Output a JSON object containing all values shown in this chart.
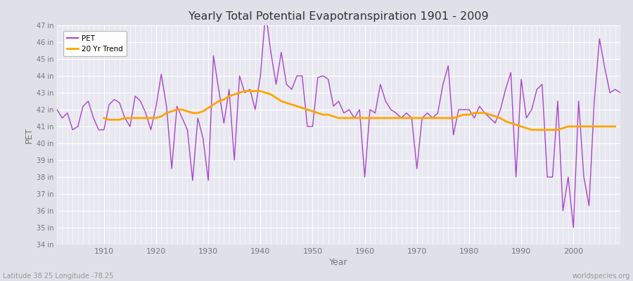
{
  "title": "Yearly Total Potential Evapotranspiration 1901 - 2009",
  "ylabel": "PET",
  "xlabel": "Year",
  "footnote_left": "Latitude 38.25 Longitude -78.25",
  "footnote_right": "worldspecies.org",
  "pet_color": "#AA44CC",
  "trend_color": "#FFA500",
  "background_color": "#E0E0E8",
  "plot_bg_color": "#E8E8F0",
  "grid_color": "#FFFFFF",
  "ylim_min": 34,
  "ylim_max": 47,
  "xlim_min": 1901,
  "xlim_max": 2009,
  "xticks": [
    1910,
    1920,
    1930,
    1940,
    1950,
    1960,
    1970,
    1980,
    1990,
    2000
  ],
  "years": [
    1901,
    1902,
    1903,
    1904,
    1905,
    1906,
    1907,
    1908,
    1909,
    1910,
    1911,
    1912,
    1913,
    1914,
    1915,
    1916,
    1917,
    1918,
    1919,
    1920,
    1921,
    1922,
    1923,
    1924,
    1925,
    1926,
    1927,
    1928,
    1929,
    1930,
    1931,
    1932,
    1933,
    1934,
    1935,
    1936,
    1937,
    1938,
    1939,
    1940,
    1941,
    1942,
    1943,
    1944,
    1945,
    1946,
    1947,
    1948,
    1949,
    1950,
    1951,
    1952,
    1953,
    1954,
    1955,
    1956,
    1957,
    1958,
    1959,
    1960,
    1961,
    1962,
    1963,
    1964,
    1965,
    1966,
    1967,
    1968,
    1969,
    1970,
    1971,
    1972,
    1973,
    1974,
    1975,
    1976,
    1977,
    1978,
    1979,
    1980,
    1981,
    1982,
    1983,
    1984,
    1985,
    1986,
    1987,
    1988,
    1989,
    1990,
    1991,
    1992,
    1993,
    1994,
    1995,
    1996,
    1997,
    1998,
    1999,
    2000,
    2001,
    2002,
    2003,
    2004,
    2005,
    2006,
    2007,
    2008,
    2009
  ],
  "pet_values": [
    42.0,
    41.5,
    41.8,
    40.8,
    41.0,
    42.2,
    42.5,
    41.5,
    40.8,
    40.8,
    42.3,
    42.6,
    42.4,
    41.5,
    41.0,
    42.8,
    42.5,
    41.8,
    40.8,
    42.2,
    44.1,
    42.2,
    38.5,
    42.2,
    41.5,
    40.8,
    37.8,
    41.5,
    40.3,
    37.8,
    45.2,
    43.2,
    41.2,
    43.2,
    39.0,
    44.0,
    43.0,
    43.2,
    42.0,
    44.0,
    47.8,
    45.4,
    43.5,
    45.4,
    43.5,
    43.2,
    44.0,
    44.0,
    41.0,
    41.0,
    43.9,
    44.0,
    43.8,
    42.2,
    42.5,
    41.8,
    42.0,
    41.5,
    42.0,
    38.0,
    42.0,
    41.8,
    43.5,
    42.5,
    42.0,
    41.8,
    41.5,
    41.8,
    41.5,
    38.5,
    41.5,
    41.8,
    41.5,
    41.8,
    43.5,
    44.6,
    40.5,
    42.0,
    42.0,
    42.0,
    41.5,
    42.2,
    41.8,
    41.5,
    41.2,
    42.0,
    43.2,
    44.2,
    38.0,
    43.8,
    41.5,
    42.0,
    43.2,
    43.5,
    38.0,
    38.0,
    42.5,
    36.0,
    38.0,
    35.0,
    42.5,
    38.0,
    36.3,
    42.5,
    46.2,
    44.5,
    43.0,
    43.2,
    43.0
  ],
  "trend_values": [
    null,
    null,
    null,
    null,
    null,
    null,
    null,
    null,
    null,
    41.5,
    41.4,
    41.4,
    41.4,
    41.5,
    41.5,
    41.5,
    41.5,
    41.5,
    41.5,
    41.5,
    41.6,
    41.8,
    41.9,
    42.0,
    42.0,
    41.9,
    41.8,
    41.8,
    41.9,
    42.1,
    42.3,
    42.5,
    42.6,
    42.8,
    42.9,
    43.0,
    43.1,
    43.1,
    43.1,
    43.1,
    43.0,
    42.9,
    42.7,
    42.5,
    42.4,
    42.3,
    42.2,
    42.1,
    42.0,
    41.9,
    41.8,
    41.7,
    41.7,
    41.6,
    41.5,
    41.5,
    41.5,
    41.5,
    41.5,
    41.5,
    41.5,
    41.5,
    41.5,
    41.5,
    41.5,
    41.5,
    41.5,
    41.5,
    41.5,
    41.5,
    41.5,
    41.5,
    41.5,
    41.5,
    41.5,
    41.5,
    41.5,
    41.6,
    41.7,
    41.7,
    41.8,
    41.8,
    41.8,
    41.7,
    41.6,
    41.5,
    41.3,
    41.2,
    41.1,
    41.0,
    40.9,
    40.8,
    40.8,
    40.8,
    40.8,
    40.8,
    40.8,
    40.9,
    41.0,
    41.0,
    41.0,
    41.0,
    41.0,
    41.0,
    41.0,
    41.0,
    41.0,
    41.0
  ]
}
